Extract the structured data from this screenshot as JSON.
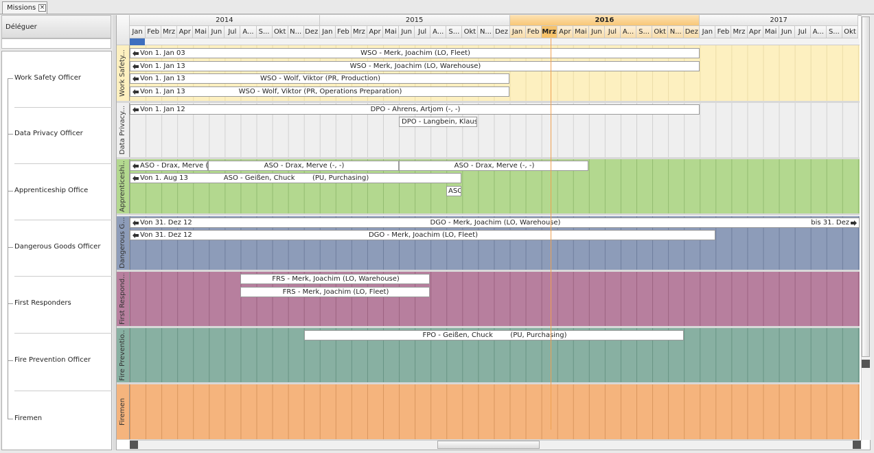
{
  "tab": "Missions",
  "left_panel": {
    "header": "Déléguer",
    "items": [
      "Work Safety Officer",
      "Data Privacy Officer",
      "Apprenticeship Office",
      "Dangerous Goods Officer",
      "First Responders",
      "Fire Prevention Officer",
      "Firemen"
    ]
  },
  "timeline": {
    "years": [
      {
        "label": "2014",
        "months": [
          "Jan",
          "Feb",
          "Mrz",
          "Apr",
          "Mai",
          "Jun",
          "Jul",
          "A...",
          "S...",
          "Okt",
          "N...",
          "Dez"
        ]
      },
      {
        "label": "2015",
        "months": [
          "Jan",
          "Feb",
          "Mrz",
          "Apr",
          "Mai",
          "Jun",
          "Jul",
          "A...",
          "S...",
          "Okt",
          "N...",
          "Dez"
        ]
      },
      {
        "label": "2016",
        "months": [
          "Jan",
          "Feb",
          "Mrz",
          "Apr",
          "Mai",
          "Jun",
          "Jul",
          "A...",
          "S...",
          "Okt",
          "N...",
          "Dez"
        ]
      },
      {
        "label": "2017",
        "months": [
          "Jan",
          "Feb",
          "Mrz",
          "Apr",
          "Mai",
          "Jun",
          "Jul",
          "A...",
          "S...",
          "Okt"
        ]
      }
    ],
    "lanes": [
      {
        "label": "Work Safety...",
        "bars": [
          {
            "from": "Von 1. Jan 03",
            "text": "WSO - Merk, Joachim (LO, Fleet)"
          },
          {
            "from": "Von 1. Jan 13",
            "text": "WSO - Merk, Joachim (LO, Warehouse)"
          },
          {
            "from": "Von 1. Jan 13",
            "text": "WSO - Wolf, Viktor (PR, Production)"
          },
          {
            "from": "Von 1. Jan 13",
            "text": "WSO - Wolf, Viktor (PR, Operations Preparation)"
          }
        ]
      },
      {
        "label": "Data Privacy...",
        "bars": [
          {
            "from": "Von 1. Jan 12",
            "text": "DPO - Ahrens, Artjom (-, -)"
          },
          {
            "text": "DPO - Langbein, Klaus-Peter"
          }
        ]
      },
      {
        "label": "Apprenticeshi...",
        "bars": [
          {
            "text": "ASO - Drax, Merve (-, -)"
          },
          {
            "text": "ASO - Drax, Merve (-, -)"
          },
          {
            "text": "ASO - Drax, Merve (-, -)"
          },
          {
            "from": "Von 1. Aug 13",
            "text": "ASO - Geißen, Chuck        (PU, Purchasing)"
          },
          {
            "text": "ASO"
          }
        ]
      },
      {
        "label": "Dangerous G...",
        "bars": [
          {
            "from": "Von 31. Dez 12",
            "text": "DGO - Merk, Joachim (LO, Warehouse)",
            "to": "bis 31. Dez"
          },
          {
            "from": "Von 31. Dez 12",
            "text": "DGO - Merk, Joachim (LO, Fleet)"
          }
        ]
      },
      {
        "label": "First Respond...",
        "bars": [
          {
            "text": "FRS - Merk, Joachim (LO, Warehouse)"
          },
          {
            "text": "FRS - Merk, Joachim (LO, Fleet)"
          }
        ]
      },
      {
        "label": "Fire Preventio...",
        "bars": [
          {
            "text": "FPO - Geißen, Chuck        (PU, Purchasing)"
          }
        ]
      },
      {
        "label": "Firemen",
        "bars": []
      }
    ]
  }
}
